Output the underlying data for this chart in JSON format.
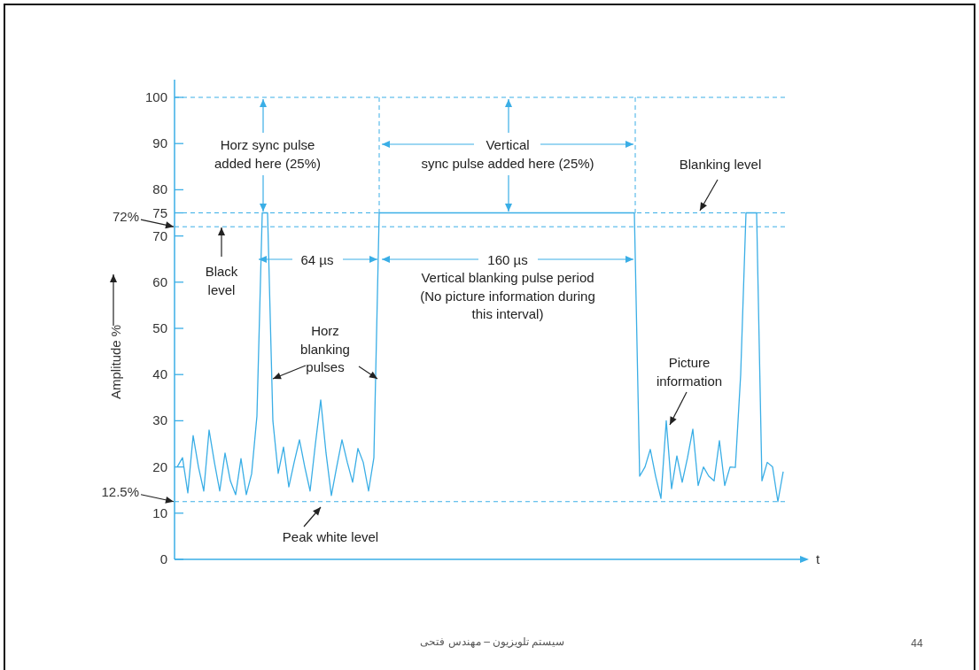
{
  "chart_data": {
    "type": "line",
    "xlabel": "t",
    "ylabel": "Amplitude %",
    "tick_labels": "y",
    "ylim": [
      0,
      100
    ],
    "yticks": [
      0,
      10,
      20,
      30,
      40,
      50,
      60,
      70,
      75,
      80,
      90,
      100
    ],
    "categories": [
      null,
      null,
      null,
      null,
      null,
      null,
      null,
      null,
      null,
      null,
      null,
      null,
      null,
      null,
      null,
      null,
      null,
      null,
      null,
      null,
      null,
      null,
      null,
      null,
      null,
      null,
      null,
      null,
      null,
      null,
      null,
      null,
      null,
      null,
      null,
      null,
      null,
      null,
      null,
      null,
      null,
      null,
      null,
      null,
      null,
      null,
      null,
      null,
      null,
      null,
      null,
      null,
      null,
      null,
      null,
      null,
      null,
      null,
      null,
      null,
      null,
      null,
      null,
      null,
      null,
      null,
      null,
      null,
      null,
      null,
      null,
      null,
      null,
      null,
      null,
      null,
      null,
      null,
      null,
      null,
      null,
      null,
      null,
      null,
      null,
      null,
      null,
      null,
      null,
      null,
      null,
      null,
      null,
      null,
      null,
      null,
      null,
      null,
      null,
      null,
      null,
      null,
      null,
      null,
      null,
      null,
      null,
      null,
      null,
      null,
      null,
      null,
      null,
      null,
      null
    ],
    "series": [
      {
        "color": "#3aaee6",
        "values": [
          20,
          22,
          14.4,
          26.8,
          20,
          14.8,
          28,
          21,
          14.8,
          23,
          17,
          14,
          21.8,
          14,
          18.5,
          31,
          75,
          75,
          30,
          18.6,
          24.3,
          15.7,
          21,
          25.9,
          20,
          14.8,
          25,
          34.5,
          23,
          13.8,
          20,
          25.9,
          21,
          16.7,
          24,
          21,
          14.8,
          22,
          75,
          75,
          75,
          75,
          75,
          75,
          75,
          75,
          75,
          75,
          75,
          75,
          75,
          75,
          75,
          75,
          75,
          75,
          75,
          75,
          75,
          75,
          75,
          75,
          75,
          75,
          75,
          75,
          75,
          75,
          75,
          75,
          75,
          75,
          75,
          75,
          75,
          75,
          75,
          75,
          75,
          75,
          75,
          75,
          75,
          75,
          75,
          75,
          75,
          18,
          20,
          23.8,
          18,
          13.2,
          30,
          15.3,
          22.4,
          16.7,
          22,
          28.2,
          16,
          20,
          18,
          17,
          25.7,
          16,
          20,
          19.9,
          40,
          75,
          75,
          75,
          17,
          21,
          20,
          12.5,
          19
        ]
      }
    ],
    "ref_lines": [
      {
        "axis": "y",
        "value": 100,
        "line_style": "dashed",
        "color": "#3aaee6"
      },
      {
        "axis": "y",
        "value": 75,
        "line_style": "dashed",
        "color": "#3aaee6"
      },
      {
        "axis": "y",
        "value": 72,
        "label": "72%",
        "line_style": "dashed",
        "color": "#3aaee6"
      },
      {
        "axis": "y",
        "value": 12.5,
        "label": "12.5%",
        "line_style": "dashed",
        "color": "#3aaee6"
      }
    ],
    "annotations": [
      "Horz sync pulse added here (25%)",
      "Vertical sync pulse added here (25%)",
      "Blanking level",
      "Black level",
      "64 µs",
      "160 µs",
      "Vertical blanking pulse period (No picture information during this interval)",
      "Horz blanking pulses",
      "Picture information",
      "Peak white level",
      "سیستم تلویزیون – مهندس فتحی",
      "44"
    ]
  }
}
